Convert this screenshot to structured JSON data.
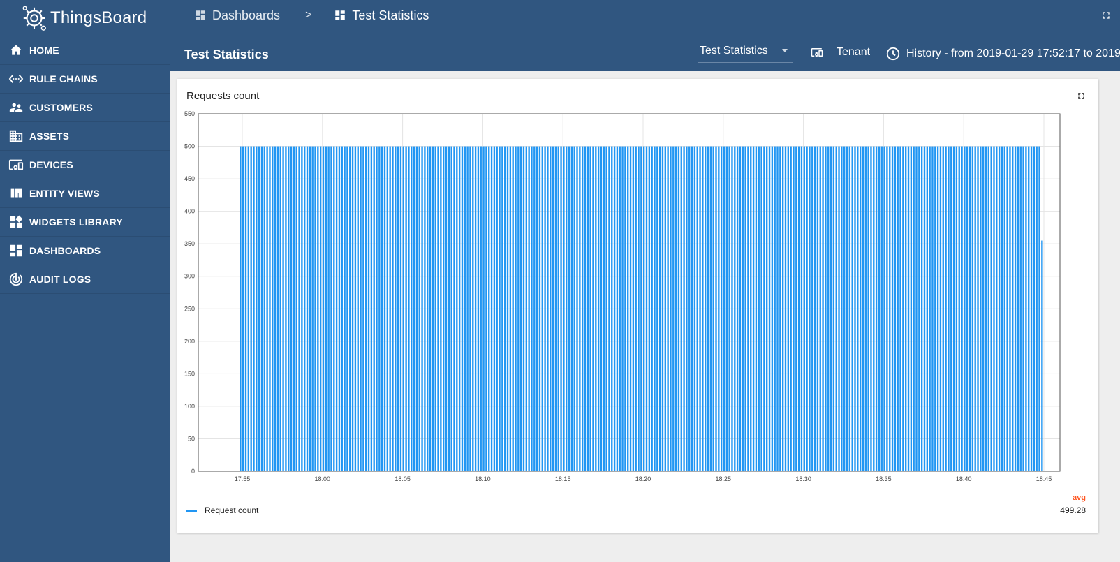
{
  "app": {
    "name": "ThingsBoard"
  },
  "sidebar": {
    "items": [
      {
        "label": "HOME",
        "icon": "home-icon"
      },
      {
        "label": "RULE CHAINS",
        "icon": "settings-ethernet-icon"
      },
      {
        "label": "CUSTOMERS",
        "icon": "supervisor-account-icon"
      },
      {
        "label": "ASSETS",
        "icon": "domain-icon"
      },
      {
        "label": "DEVICES",
        "icon": "devices-other-icon"
      },
      {
        "label": "ENTITY VIEWS",
        "icon": "view-quilt-icon"
      },
      {
        "label": "WIDGETS LIBRARY",
        "icon": "widgets-icon"
      },
      {
        "label": "DASHBOARDS",
        "icon": "dashboards-icon"
      },
      {
        "label": "AUDIT LOGS",
        "icon": "track-changes-icon"
      }
    ]
  },
  "breadcrumb": {
    "items": [
      "Dashboards",
      "Test Statistics"
    ],
    "separator": ">"
  },
  "dashboard": {
    "title": "Test Statistics",
    "state_select": "Test Statistics",
    "entity_scope": "Tenant",
    "timewindow": "History - from 2019-01-29 17:52:17 to 2019"
  },
  "widget": {
    "title": "Requests count",
    "legend": {
      "series_name": "Request count",
      "avg_label": "avg",
      "avg_value": "499.28"
    }
  },
  "colors": {
    "primary": "#305680",
    "bar": "#2196f3",
    "avg": "#ff5722"
  },
  "chart_data": {
    "type": "bar",
    "title": "Requests count",
    "xlabel": "",
    "ylabel": "",
    "ylim": [
      0,
      550
    ],
    "yticks": [
      "0",
      "50",
      "100",
      "150",
      "200",
      "250",
      "300",
      "350",
      "400",
      "450",
      "500",
      "550"
    ],
    "xticks": [
      "17:55",
      "18:00",
      "18:05",
      "18:10",
      "18:15",
      "18:20",
      "18:25",
      "18:30",
      "18:35",
      "18:40",
      "18:45"
    ],
    "grid": true,
    "legend": "bottom-left",
    "series": [
      {
        "name": "Request count",
        "color": "#2196f3",
        "bar_interval_seconds": 10,
        "first_bar_time": "17:54:50",
        "bar_count": 301,
        "value_default": 500,
        "last_bar_value": 355,
        "avg": 499.28
      }
    ]
  }
}
